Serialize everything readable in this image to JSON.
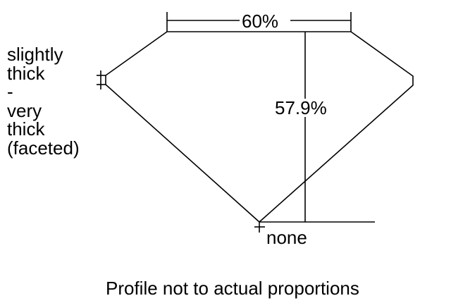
{
  "table_label": "60%",
  "depth_label": "57.9%",
  "girdle_label_lines": [
    "slightly",
    "thick",
    "-",
    "very",
    "thick",
    "(faceted)"
  ],
  "culet_label": "none",
  "caption": "Profile not to actual proportions",
  "line_color": "#000000"
}
